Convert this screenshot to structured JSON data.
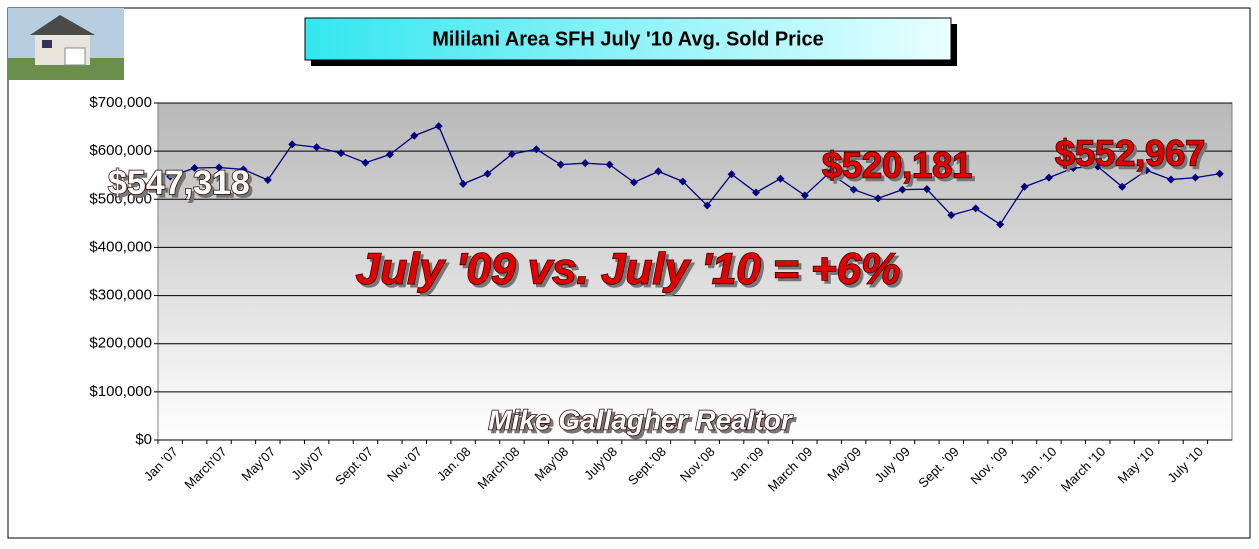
{
  "chart_data": {
    "type": "line",
    "title": "Mililani Area SFH July '10 Avg. Sold Price",
    "categories": [
      "Jan '07",
      null,
      "March'07",
      null,
      "May'07",
      null,
      "July'07",
      null,
      "Sept.'07",
      null,
      "Nov.'07",
      null,
      "Jan.'08",
      null,
      "March'08",
      null,
      "May'08",
      null,
      "July'08",
      null,
      "Sept.'08",
      null,
      "Nov.'08",
      null,
      "Jan.'09",
      null,
      "March '09",
      null,
      "May'09",
      null,
      "July '09",
      null,
      "Sept. '09",
      null,
      "Nov. '09",
      null,
      "Jan. '10",
      null,
      "March '10",
      null,
      "May '10",
      null,
      "July '10",
      null
    ],
    "series": [
      {
        "name": "Avg. Sold Price",
        "color": "#000080",
        "values": [
          547318,
          565000,
          566000,
          562000,
          540000,
          614000,
          608000,
          596000,
          576000,
          593000,
          632000,
          652000,
          532000,
          553000,
          594000,
          604000,
          572000,
          575000,
          572000,
          535000,
          558000,
          537000,
          487000,
          552000,
          514000,
          543000,
          508000,
          555000,
          520181,
          502000,
          520000,
          521000,
          467000,
          481000,
          448000,
          526000,
          545000,
          565000,
          568000,
          526000,
          560000,
          541000,
          545000,
          552967
        ]
      }
    ],
    "ylim": [
      0,
      700000
    ],
    "yticks": [
      {
        "value": 0,
        "label": "$0"
      },
      {
        "value": 100000,
        "label": "$100,000"
      },
      {
        "value": 200000,
        "label": "$200,000"
      },
      {
        "value": 300000,
        "label": "$300,000"
      },
      {
        "value": 400000,
        "label": "$400,000"
      },
      {
        "value": 500000,
        "label": "$500,000"
      },
      {
        "value": 600000,
        "label": "$600,000"
      },
      {
        "value": 700000,
        "label": "$700,000"
      }
    ],
    "grid": true,
    "annotations": [
      "$547,318",
      "$520,181",
      "$552,967",
      "July '09 vs. July '10 = +6%",
      "Mike Gallagher Realtor"
    ]
  }
}
